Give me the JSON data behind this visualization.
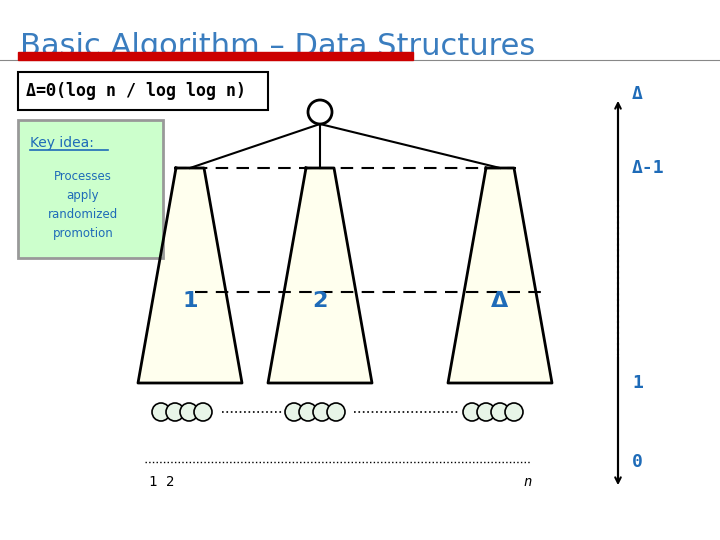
{
  "title": "Basic Algorithm – Data Structures",
  "title_color": "#3A7DBF",
  "title_fontsize": 22,
  "bg_color": "#FFFFFF",
  "red_bar_color": "#CC0000",
  "blue_color": "#1E6BB8",
  "dark_color": "#000000",
  "light_green_bg": "#CCFFCC",
  "light_yellow": "#FFFFEE",
  "formula_text": "Δ=Θ(log n / log log n)",
  "key_idea_title": "Key idea:",
  "key_idea_body": "Processes\napply\nrandomized\npromotion",
  "label_1": "1",
  "label_2": "2",
  "label_delta": "Δ",
  "axis_labels": [
    "Δ",
    "Δ-1",
    "1",
    "0"
  ],
  "x_labels": [
    "1",
    "2",
    "n"
  ],
  "font_mono": "monospace"
}
